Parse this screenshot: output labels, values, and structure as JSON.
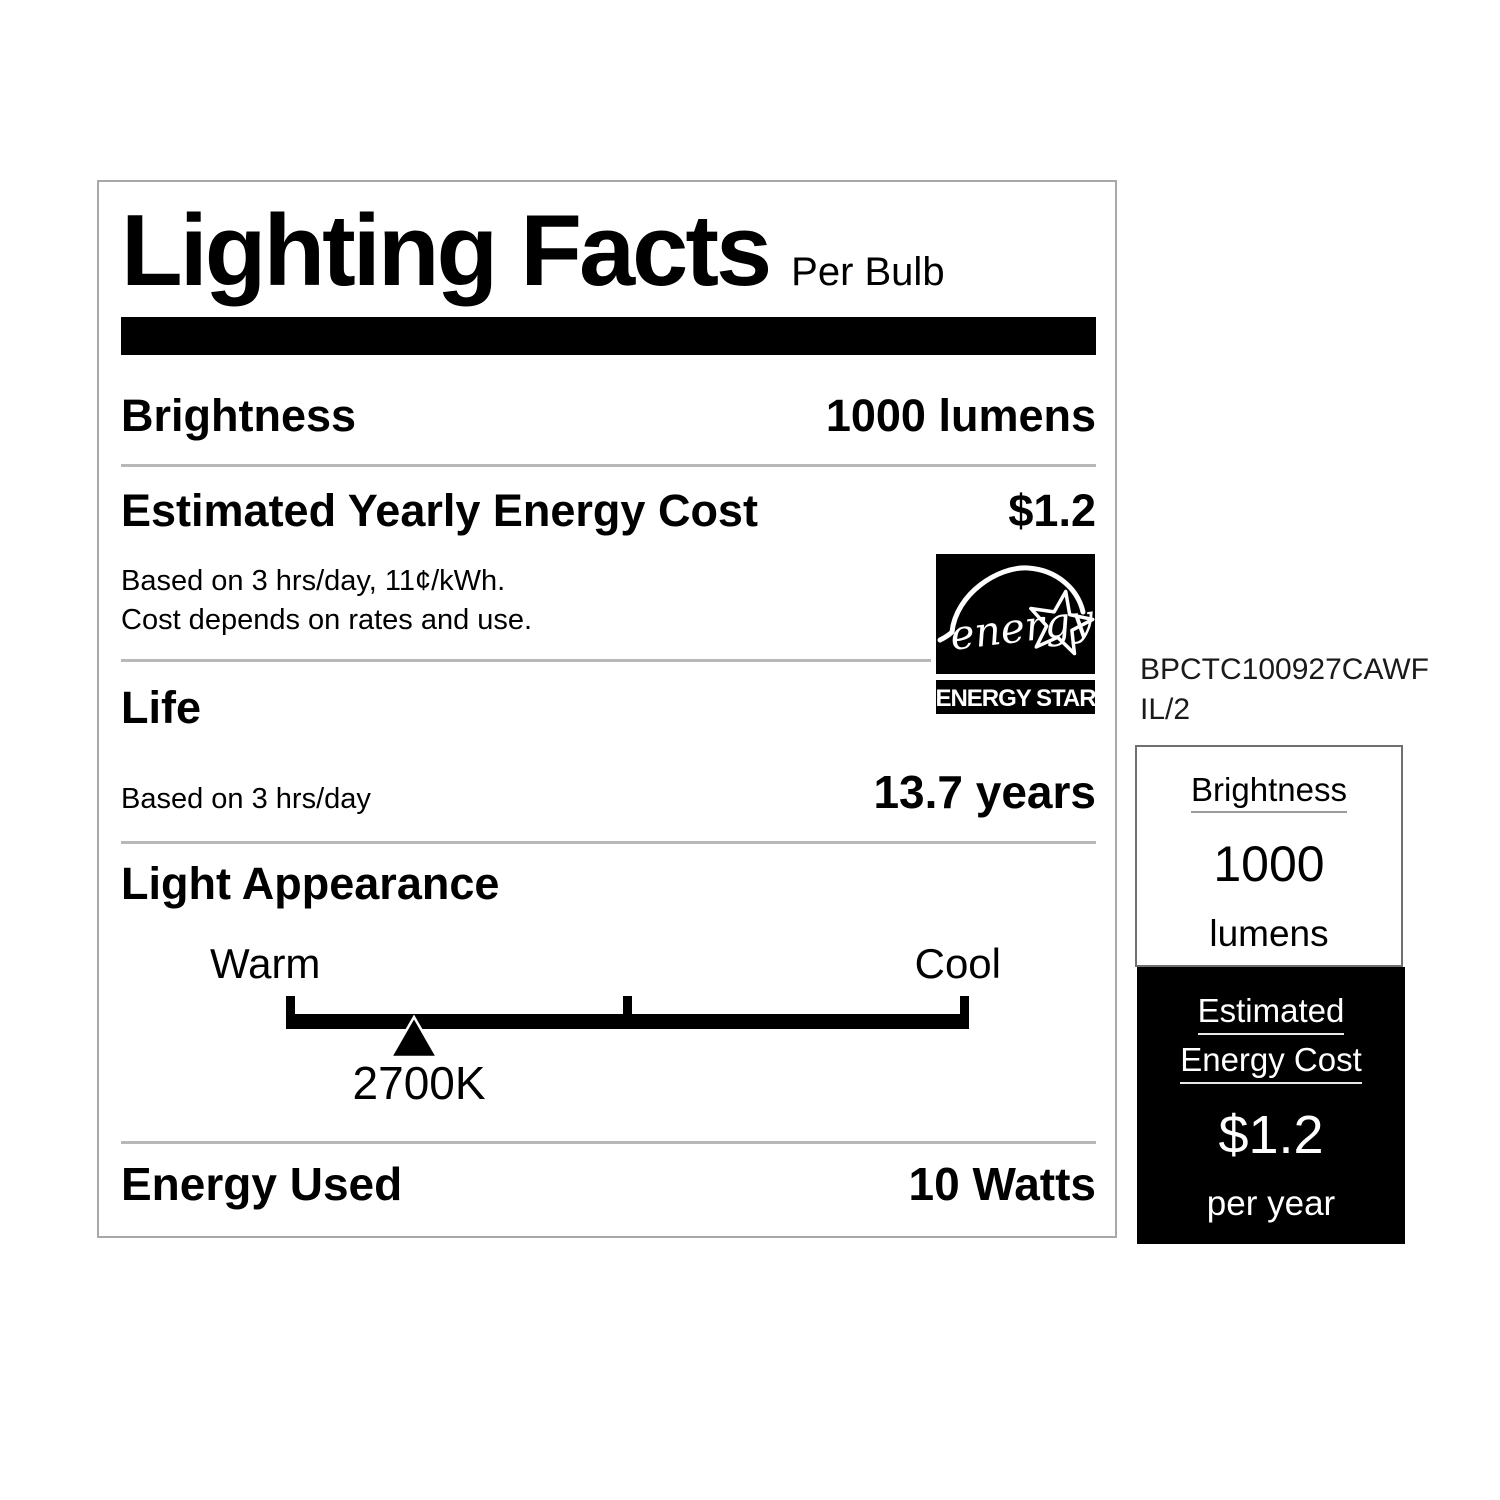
{
  "label": {
    "title": "Lighting Facts",
    "per_unit": "Per Bulb",
    "brightness": {
      "name": "Brightness",
      "value": "1000 lumens"
    },
    "energy_cost": {
      "name": "Estimated Yearly Energy Cost",
      "value": "$1.2",
      "note1": "Based on 3 hrs/day, 11¢/kWh.",
      "note2": "Cost depends on rates and use."
    },
    "life": {
      "name": "Life",
      "basis": "Based on 3 hrs/day",
      "value": "13.7 years"
    },
    "light_appearance": {
      "name": "Light Appearance",
      "warm_label": "Warm",
      "cool_label": "Cool",
      "temperature": "2700K",
      "marker_percent": 18.7,
      "ticks_percent": [
        0,
        50,
        100
      ]
    },
    "energy_used": {
      "name": "Energy Used",
      "value": "10 Watts"
    },
    "energy_star": {
      "script_word": "energy",
      "caption": "ENERGY STAR"
    }
  },
  "sidebar": {
    "product_code": {
      "full": "BPCTC100927CAWFIL/2",
      "line1": "BPCTC100927CAWF",
      "line2": "IL/2"
    },
    "brightness_card": {
      "heading": "Brightness",
      "value": "1000",
      "unit": "lumens"
    },
    "cost_card": {
      "heading_line1": "Estimated",
      "heading_line2": "Energy Cost",
      "value": "$1.2",
      "unit": "per year"
    }
  },
  "colors": {
    "ink": "#000000",
    "divider": "#b8b8b8",
    "box_border": "#a8a8a8"
  }
}
